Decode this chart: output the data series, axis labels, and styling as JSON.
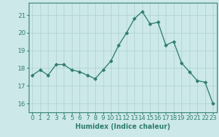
{
  "x": [
    0,
    1,
    2,
    3,
    4,
    5,
    6,
    7,
    8,
    9,
    10,
    11,
    12,
    13,
    14,
    15,
    16,
    17,
    18,
    19,
    20,
    21,
    22,
    23
  ],
  "y": [
    17.6,
    17.9,
    17.6,
    18.2,
    18.2,
    17.9,
    17.8,
    17.6,
    17.4,
    17.9,
    18.4,
    19.3,
    20.0,
    20.8,
    21.2,
    20.5,
    20.6,
    19.3,
    19.5,
    18.3,
    17.8,
    17.3,
    17.2,
    16.0
  ],
  "line_color": "#2e7d6e",
  "marker": "D",
  "marker_size": 2.5,
  "bg_color": "#cce8e8",
  "grid_color": "#aacfcf",
  "xlabel": "Humidex (Indice chaleur)",
  "xlim": [
    -0.5,
    23.5
  ],
  "ylim": [
    15.5,
    21.7
  ],
  "yticks": [
    16,
    17,
    18,
    19,
    20,
    21
  ],
  "xticks": [
    0,
    1,
    2,
    3,
    4,
    5,
    6,
    7,
    8,
    9,
    10,
    11,
    12,
    13,
    14,
    15,
    16,
    17,
    18,
    19,
    20,
    21,
    22,
    23
  ],
  "tick_color": "#2e7d6e",
  "label_color": "#2e7d6e",
  "xlabel_fontsize": 7,
  "tick_fontsize": 6.5,
  "linewidth": 1.0
}
